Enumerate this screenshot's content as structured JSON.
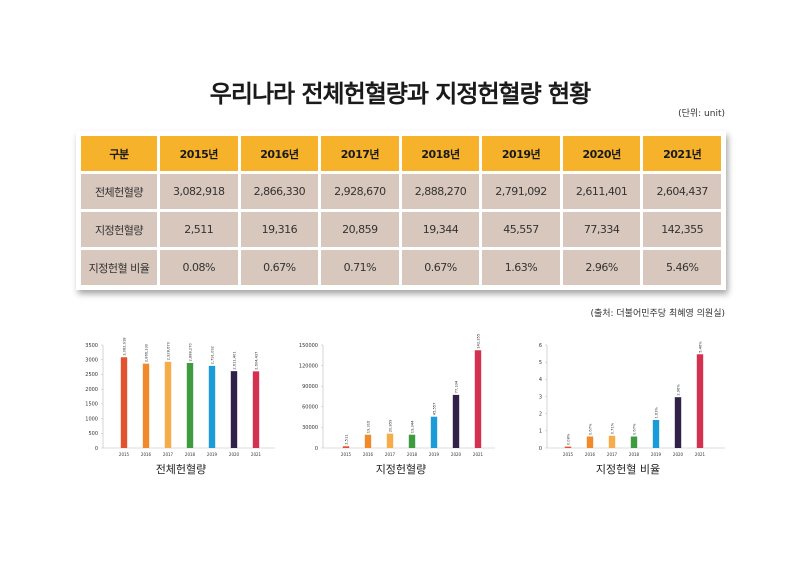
{
  "title": "우리나라 전체헌혈량과 지정헌혈량 현황",
  "unit_note": "(단위: unit)",
  "source_note": "(출처: 더불어민주당 최혜영 의원실)",
  "table": {
    "headers": [
      "구분",
      "2015년",
      "2016년",
      "2017년",
      "2018년",
      "2019년",
      "2020년",
      "2021년"
    ],
    "rows": [
      [
        "전체헌혈량",
        "3,082,918",
        "2,866,330",
        "2,928,670",
        "2,888,270",
        "2,791,092",
        "2,611,401",
        "2,604,437"
      ],
      [
        "지정헌혈량",
        "2,511",
        "19,316",
        "20,859",
        "19,344",
        "45,557",
        "77,334",
        "142,355"
      ],
      [
        "지정헌혈 비율",
        "0.08%",
        "0.67%",
        "0.71%",
        "0.67%",
        "1.63%",
        "2.96%",
        "5.46%"
      ]
    ]
  },
  "colors": {
    "header_bg": "#f6b22b",
    "cell_bg": "#d8c7bd",
    "bars": [
      "#e2522d",
      "#f08a2a",
      "#f6ac48",
      "#3e9c3f",
      "#1b9bd7",
      "#2f2147",
      "#d3314f"
    ]
  },
  "chart_data": [
    {
      "type": "bar",
      "title": "전체헌혈량",
      "categories": [
        "2015",
        "2016",
        "2017",
        "2018",
        "2019",
        "2020",
        "2021"
      ],
      "values": [
        3082.918,
        2866.33,
        2928.67,
        2888.27,
        2791.092,
        2611.401,
        2604.437
      ],
      "data_labels": [
        "3,082,918",
        "2,866,330",
        "2,928,670",
        "2,888,270",
        "2,791,092",
        "2,611,401",
        "2,604,437"
      ],
      "yticks": [
        "0",
        "500",
        "1000",
        "1500",
        "2000",
        "2500",
        "3000",
        "3500"
      ],
      "ylim": [
        0,
        3500
      ],
      "grid": false
    },
    {
      "type": "bar",
      "title": "지정헌혈량",
      "categories": [
        "2015",
        "2016",
        "2017",
        "2018",
        "2019",
        "2020",
        "2021"
      ],
      "values": [
        2511,
        19316,
        20859,
        19344,
        45557,
        77334,
        142355
      ],
      "data_labels": [
        "2,511",
        "19,316",
        "20,859",
        "19,344",
        "45,557",
        "77,334",
        "142,355"
      ],
      "yticks": [
        "0",
        "30000",
        "60000",
        "90000",
        "120000",
        "150000"
      ],
      "ylim": [
        0,
        150000
      ],
      "grid": false
    },
    {
      "type": "bar",
      "title": "지정헌혈 비율",
      "categories": [
        "2015",
        "2016",
        "2017",
        "2018",
        "2019",
        "2020",
        "2021"
      ],
      "values": [
        0.08,
        0.67,
        0.71,
        0.67,
        1.63,
        2.96,
        5.46
      ],
      "data_labels": [
        "0.08%",
        "0.67%",
        "0.71%",
        "0.67%",
        "1.63%",
        "2.96%",
        "5.46%"
      ],
      "yticks": [
        "0",
        "1",
        "2",
        "3",
        "4",
        "5",
        "6"
      ],
      "ylim": [
        0,
        6
      ],
      "grid": false
    }
  ]
}
